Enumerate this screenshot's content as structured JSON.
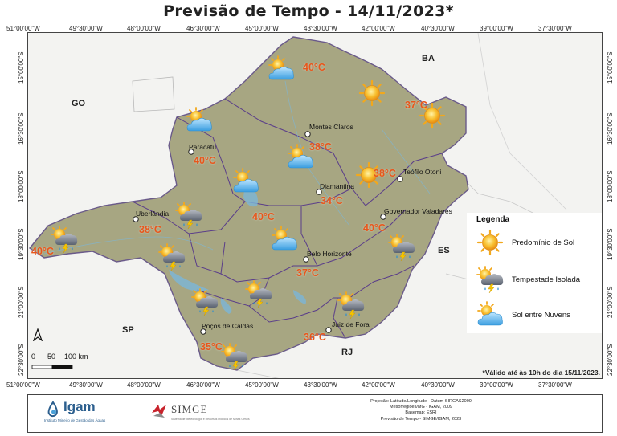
{
  "title": "Previsão de Tempo - 14/11/2023*",
  "longitude_labels": [
    "51°00'00\"W",
    "49°30'00\"W",
    "48°00'00\"W",
    "46°30'00\"W",
    "45°00'00\"W",
    "43°30'00\"W",
    "42°00'00\"W",
    "40°30'00\"W",
    "39°00'00\"W",
    "37°30'00\"W"
  ],
  "latitude_labels": [
    "15°00'00\"S",
    "16°30'00\"S",
    "18°00'00\"S",
    "19°30'00\"S",
    "21°00'00\"S",
    "22°30'00\"S"
  ],
  "states": [
    "GO",
    "BA",
    "SP",
    "ES",
    "RJ"
  ],
  "cities": [
    "Montes Claros",
    "Paracatu",
    "Diamantina",
    "Teófilo Otoni",
    "Uberlândia",
    "Governador Valadares",
    "Belo Horizonte",
    "Poços de Caldas",
    "Juiz de Fora"
  ],
  "temperatures": [
    "40°C",
    "37°C",
    "38°C",
    "40°C",
    "38°C",
    "40°C",
    "34°C",
    "38°C",
    "40°C",
    "40°C",
    "37°C",
    "35°C",
    "36°C"
  ],
  "forecast_icons": [
    "sun-clouds",
    "sun",
    "sun",
    "sun-clouds",
    "sun-clouds",
    "sun",
    "sun-clouds",
    "sun-storm",
    "sun-storm",
    "sun-clouds",
    "sun-storm",
    "sun-storm",
    "sun-storm",
    "sun-storm",
    "sun-storm",
    "sun-storm"
  ],
  "legend": {
    "title": "Legenda",
    "items": [
      {
        "label": "Predomínio de Sol",
        "icon": "sun"
      },
      {
        "label": "Tempestade Isolada",
        "icon": "sun-storm"
      },
      {
        "label": "Sol entre Nuvens",
        "icon": "sun-clouds"
      }
    ]
  },
  "validity_note": "*Válido até às 10h do dia 15/11/2023.",
  "scale": {
    "zero": "0",
    "mid": "50",
    "end": "100 km"
  },
  "north_label": "A",
  "footer": {
    "igam_name": "Igam",
    "igam_subtitle": "Instituto Mineiro de Gestão das Águas",
    "simge_name": "SIMGE",
    "simge_subtitle": "Sistema de Meteorologia e Recursos Hídricos de Minas Gerais",
    "credits": [
      "Projeção: Latitude/Longitude - Datum SIRGAS2000",
      "Mesorregiões/MG - IGAM, 2009",
      "Basemap: ESRI",
      "Previsão de Tempo - SIMGE/IGAM, 2023"
    ]
  },
  "colors": {
    "temperature": "#e8561b",
    "land": "#a9a884",
    "boundary": "#5a3d8a",
    "sun": "#f5b01f",
    "cloud": "#5fb8ec"
  }
}
